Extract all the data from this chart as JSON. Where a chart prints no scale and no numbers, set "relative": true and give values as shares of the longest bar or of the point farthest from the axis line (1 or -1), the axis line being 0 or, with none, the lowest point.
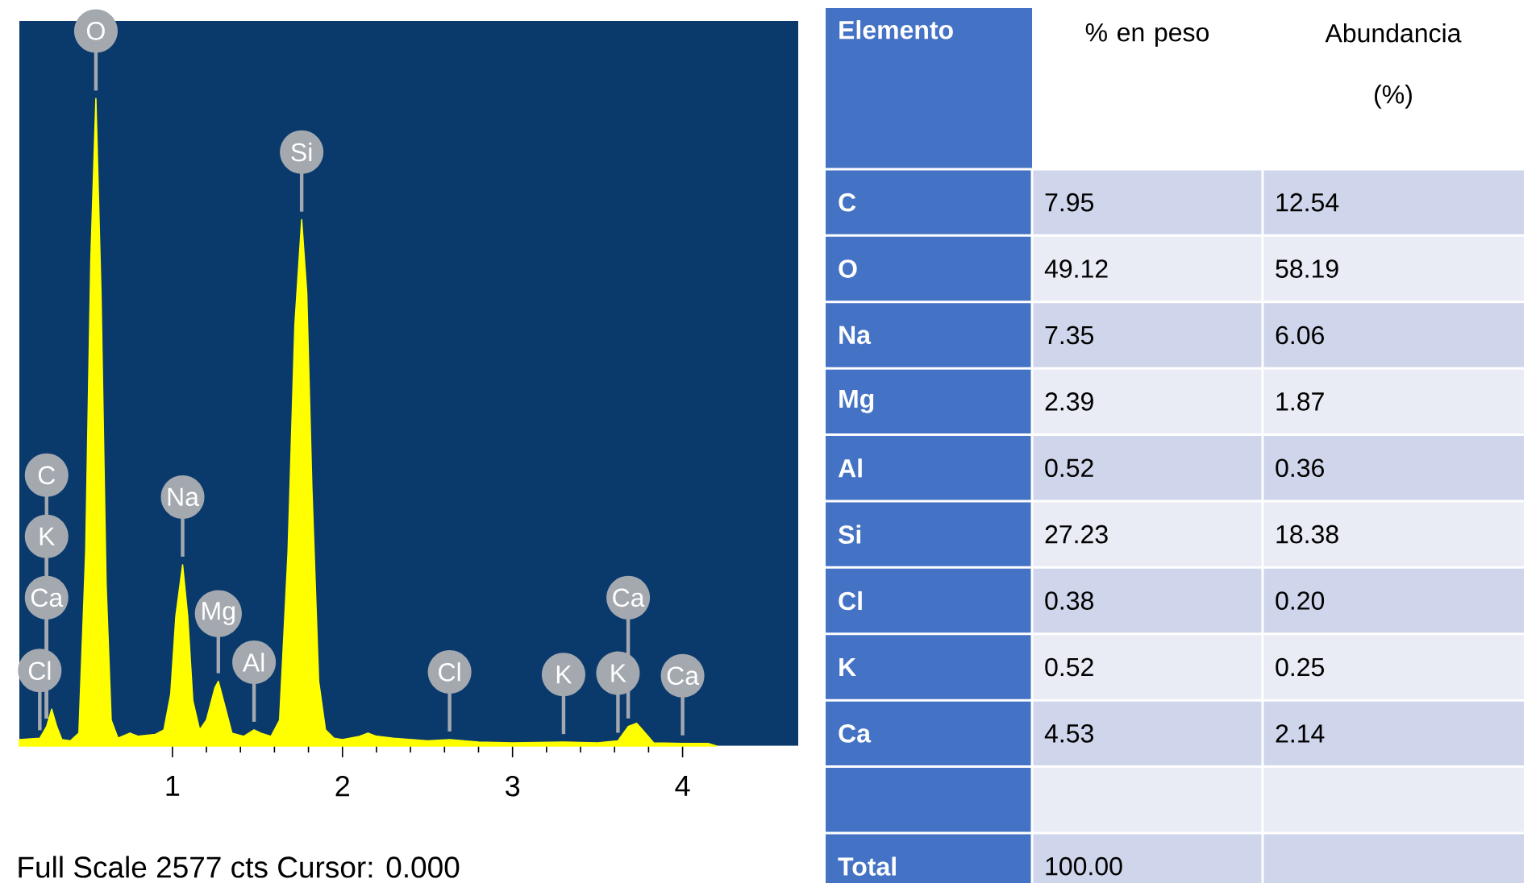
{
  "chart_data": [
    {
      "type": "area",
      "relative": true,
      "color": "#ffff00",
      "xlim": [
        0.1,
        4.68
      ],
      "xticks": [
        1,
        2,
        3,
        4
      ],
      "x": [
        0.1,
        0.22,
        0.26,
        0.29,
        0.32,
        0.35,
        0.4,
        0.45,
        0.49,
        0.52,
        0.55,
        0.58,
        0.61,
        0.64,
        0.68,
        0.75,
        0.8,
        0.9,
        0.95,
        0.99,
        1.02,
        1.06,
        1.09,
        1.12,
        1.16,
        1.2,
        1.25,
        1.27,
        1.31,
        1.35,
        1.42,
        1.48,
        1.52,
        1.58,
        1.63,
        1.68,
        1.72,
        1.76,
        1.79,
        1.82,
        1.86,
        1.9,
        1.95,
        2.0,
        2.1,
        2.15,
        2.2,
        2.3,
        2.5,
        2.63,
        2.8,
        3.0,
        3.3,
        3.5,
        3.62,
        3.68,
        3.73,
        3.78,
        3.83,
        4.0,
        4.15,
        4.2
      ],
      "values": [
        0.01,
        0.012,
        0.03,
        0.057,
        0.03,
        0.01,
        0.008,
        0.02,
        0.3,
        0.75,
        1.0,
        0.7,
        0.25,
        0.04,
        0.012,
        0.02,
        0.015,
        0.018,
        0.025,
        0.08,
        0.2,
        0.28,
        0.2,
        0.07,
        0.025,
        0.04,
        0.09,
        0.1,
        0.06,
        0.02,
        0.015,
        0.025,
        0.02,
        0.015,
        0.04,
        0.3,
        0.65,
        0.813,
        0.7,
        0.4,
        0.1,
        0.025,
        0.012,
        0.01,
        0.015,
        0.02,
        0.015,
        0.012,
        0.008,
        0.01,
        0.006,
        0.005,
        0.006,
        0.005,
        0.008,
        0.03,
        0.035,
        0.02,
        0.005,
        0.004,
        0.004,
        0
      ],
      "annotations": [
        {
          "text": "O",
          "x": 0.55,
          "y": 1.0
        },
        {
          "text": "Si",
          "x": 1.76,
          "y": 0.813
        },
        {
          "text": "Cl",
          "x": 0.22,
          "y": 0.012
        },
        {
          "text": "Ca",
          "x": 0.26,
          "y": 0.03
        },
        {
          "text": "K",
          "x": 0.26,
          "y": 0.03
        },
        {
          "text": "C",
          "x": 0.26,
          "y": 0.03
        },
        {
          "text": "Na",
          "x": 1.06,
          "y": 0.28
        },
        {
          "text": "Mg",
          "x": 1.27,
          "y": 0.1
        },
        {
          "text": "Al",
          "x": 1.48,
          "y": 0.025
        },
        {
          "text": "Cl",
          "x": 2.63,
          "y": 0.01
        },
        {
          "text": "K",
          "x": 3.3,
          "y": 0.006
        },
        {
          "text": "K",
          "x": 3.62,
          "y": 0.008
        },
        {
          "text": "Ca",
          "x": 3.68,
          "y": 0.03
        },
        {
          "text": "Ca",
          "x": 4.0,
          "y": 0.004
        },
        "Full Scale 2577 cts Cursor: 0.000"
      ]
    },
    {
      "type": "other",
      "ylabel": "Elemento",
      "categories": [
        "C",
        "O",
        "Na",
        "Mg",
        "Al",
        "Si",
        "Cl",
        "K",
        "Ca",
        null,
        "Total"
      ],
      "annotations": [
        "% en peso",
        "Abundancia (%)",
        "7.95",
        "12.54",
        "49.12",
        "58.19",
        "7.35",
        "6.06",
        "2.39",
        "1.87",
        "0.52",
        "0.36",
        "27.23",
        "18.38",
        "0.38",
        "0.20",
        "0.52",
        "0.25",
        "4.53",
        "2.14",
        "100.00"
      ]
    }
  ]
}
